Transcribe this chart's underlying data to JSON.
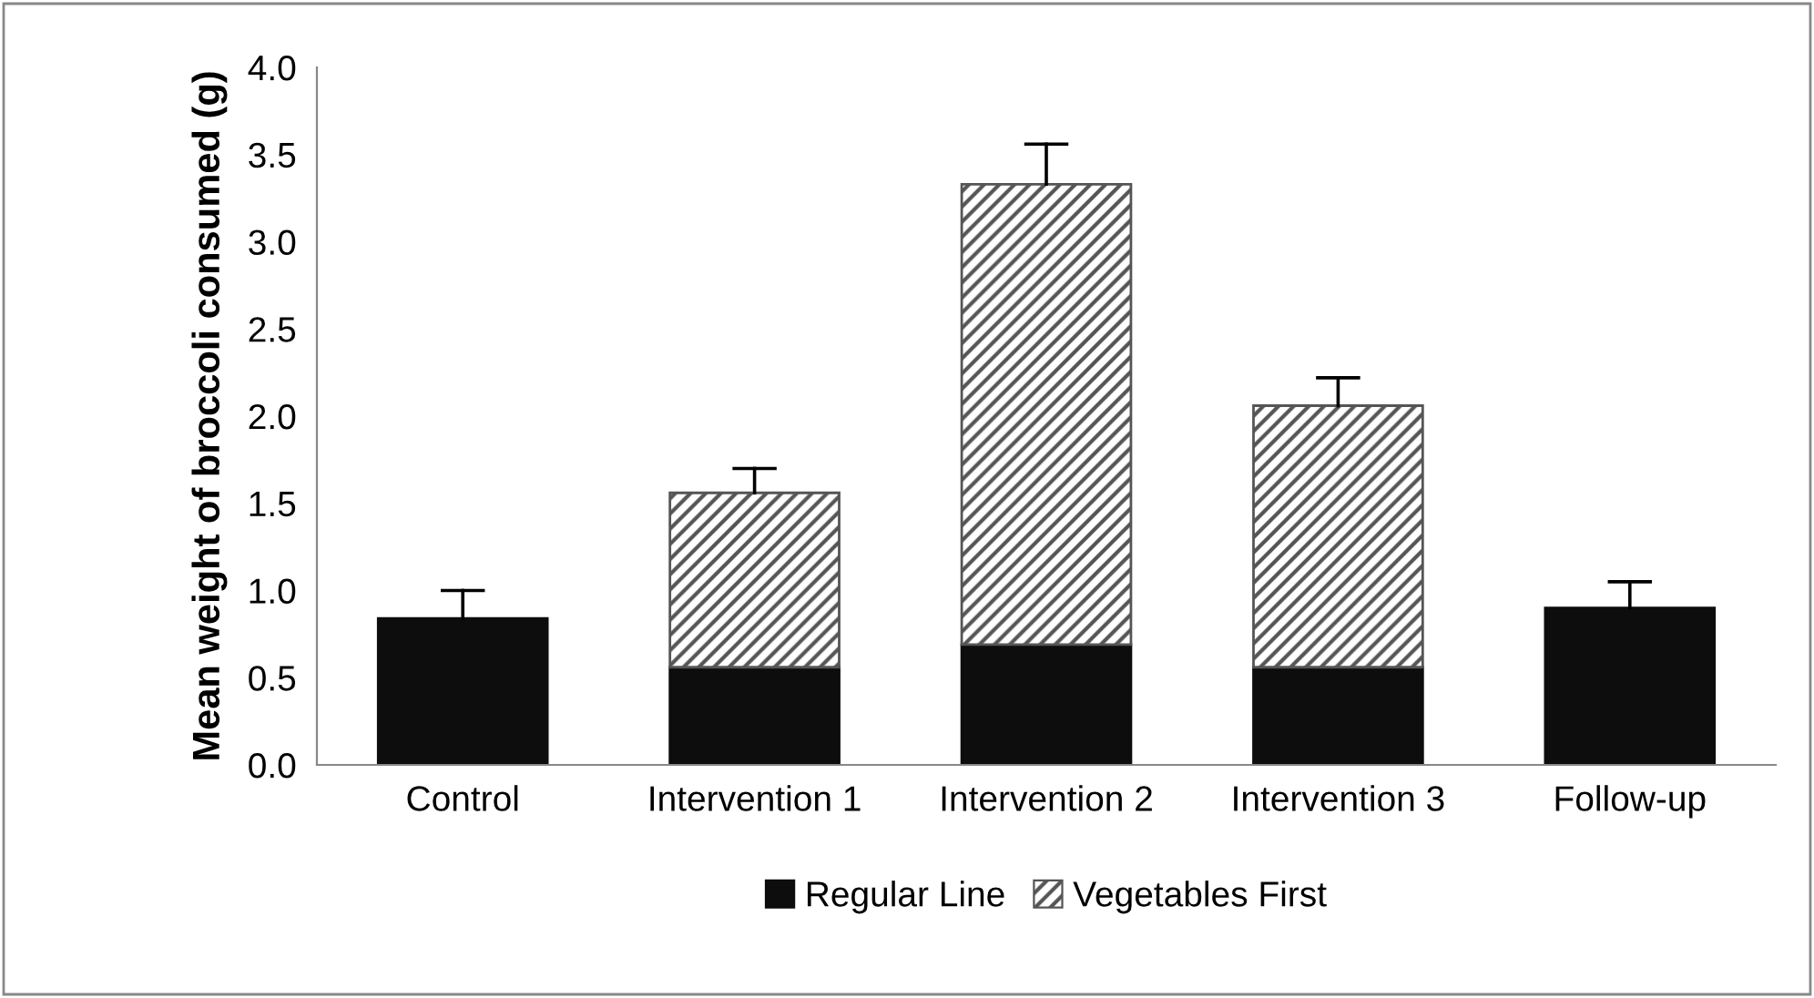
{
  "chart_data": {
    "type": "bar",
    "stacked": true,
    "ylabel": "Mean weight of broccoli consumed (g)",
    "categories": [
      "Control",
      "Intervention 1",
      "Intervention 2",
      "Intervention 3",
      "Follow-up"
    ],
    "series": [
      {
        "name": "Regular Line",
        "color": "#0d0d0d",
        "values": [
          0.84,
          0.56,
          0.69,
          0.56,
          0.9
        ],
        "errors": [
          [
            0.84,
            1.0
          ],
          null,
          null,
          null,
          [
            0.9,
            1.05
          ]
        ]
      },
      {
        "name": "Vegetables First",
        "color": "#555555",
        "values": [
          null,
          1.0,
          2.64,
          1.5,
          null
        ],
        "errors": [
          null,
          [
            1.56,
            1.7
          ],
          [
            3.33,
            3.56
          ],
          [
            2.06,
            2.22
          ],
          null
        ]
      }
    ],
    "ylim": [
      0,
      4
    ],
    "yticks": [
      {
        "value": 0,
        "label": "0.0"
      },
      {
        "value": 0.5,
        "label": "0.5"
      },
      {
        "value": 1,
        "label": "1.0"
      },
      {
        "value": 1.5,
        "label": "1.5"
      },
      {
        "value": 2,
        "label": "2.0"
      },
      {
        "value": 2.5,
        "label": "2.5"
      },
      {
        "value": 3,
        "label": "3.0"
      },
      {
        "value": 3.5,
        "label": "3.5"
      },
      {
        "value": 4,
        "label": "4.0"
      }
    ],
    "grid": false,
    "legend": "bottom"
  }
}
